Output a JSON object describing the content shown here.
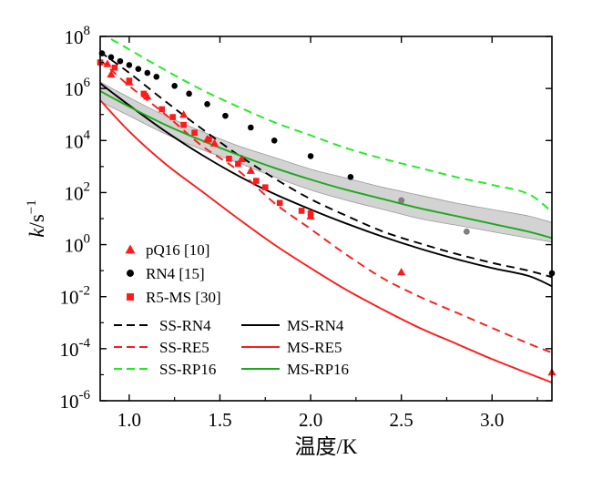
{
  "chart_data": {
    "type": "line",
    "xlabel": "温度/K",
    "ylabel_main": "k",
    "ylabel_unit": "/s",
    "ylabel_sup": "−1",
    "xlim": [
      0.84,
      3.33
    ],
    "ylim": [
      -6,
      8
    ],
    "yscale": "log10",
    "xticks": [
      {
        "v": 1.0,
        "label": "1.0"
      },
      {
        "v": 1.5,
        "label": "1.5"
      },
      {
        "v": 2.0,
        "label": "2.0"
      },
      {
        "v": 2.5,
        "label": "2.5"
      },
      {
        "v": 3.0,
        "label": "3.0"
      }
    ],
    "yticks": [
      {
        "v": 8,
        "base": "10",
        "exp": "8"
      },
      {
        "v": 6,
        "base": "10",
        "exp": "6"
      },
      {
        "v": 4,
        "base": "10",
        "exp": "4"
      },
      {
        "v": 2,
        "base": "10",
        "exp": "2"
      },
      {
        "v": 0,
        "base": "10",
        "exp": "0"
      },
      {
        "v": -2,
        "base": "10",
        "exp": "-2"
      },
      {
        "v": -4,
        "base": "10",
        "exp": "-4"
      },
      {
        "v": -6,
        "base": "10",
        "exp": "-6"
      }
    ],
    "uncertainty_band": {
      "x": [
        0.84,
        1.0,
        1.2,
        1.4,
        1.6,
        1.8,
        2.0,
        2.2,
        2.4,
        2.6,
        2.8,
        3.0,
        3.2,
        3.33
      ],
      "upper": [
        6.25,
        5.65,
        4.95,
        4.35,
        3.8,
        3.35,
        2.9,
        2.55,
        2.2,
        1.9,
        1.6,
        1.35,
        1.1,
        0.85
      ],
      "lower": [
        5.5,
        4.95,
        4.25,
        3.65,
        3.15,
        2.6,
        2.1,
        1.7,
        1.35,
        1.0,
        0.75,
        0.5,
        0.25,
        0.1
      ],
      "color": "#d3d3d3"
    },
    "series": [
      {
        "name": "SS-RN4",
        "style": "dashed",
        "color": "#000000",
        "x": [
          0.84,
          1.0,
          1.2,
          1.4,
          1.6,
          1.8,
          2.0,
          2.2,
          2.4,
          2.6,
          2.8,
          3.0,
          3.2,
          3.33
        ],
        "y": [
          7.4,
          6.6,
          5.5,
          4.45,
          3.45,
          2.55,
          1.75,
          1.1,
          0.5,
          0.05,
          -0.35,
          -0.7,
          -1.0,
          -1.25
        ]
      },
      {
        "name": "MS-RN4",
        "style": "solid",
        "color": "#000000",
        "x": [
          0.84,
          1.0,
          1.2,
          1.4,
          1.6,
          1.8,
          2.0,
          2.2,
          2.4,
          2.6,
          2.8,
          3.0,
          3.2,
          3.33
        ],
        "y": [
          6.2,
          5.35,
          4.35,
          3.45,
          2.65,
          1.95,
          1.35,
          0.8,
          0.3,
          -0.15,
          -0.55,
          -0.9,
          -1.2,
          -1.6
        ]
      },
      {
        "name": "SS-RE5",
        "style": "dashed",
        "color": "#ff1a1a",
        "x": [
          0.84,
          1.0,
          1.2,
          1.4,
          1.6,
          1.8,
          2.0,
          2.2,
          2.4,
          2.6,
          2.8,
          3.0,
          3.2,
          3.33
        ],
        "y": [
          7.1,
          6.1,
          5.0,
          3.8,
          2.85,
          1.6,
          0.6,
          -0.4,
          -1.3,
          -2.0,
          -2.6,
          -3.2,
          -3.8,
          -4.15
        ]
      },
      {
        "name": "MS-RE5",
        "style": "solid",
        "color": "#ff1a1a",
        "x": [
          0.84,
          1.0,
          1.2,
          1.4,
          1.6,
          1.8,
          2.0,
          2.2,
          2.4,
          2.6,
          2.8,
          3.0,
          3.2,
          3.33
        ],
        "y": [
          5.55,
          4.35,
          3.1,
          2.05,
          1.0,
          0.0,
          -0.9,
          -1.75,
          -2.5,
          -3.2,
          -3.8,
          -4.4,
          -4.95,
          -5.3
        ]
      },
      {
        "name": "SS-RP16",
        "style": "dashed",
        "color": "#1aee1a",
        "x": [
          0.9,
          1.0,
          1.2,
          1.4,
          1.6,
          1.8,
          2.0,
          2.2,
          2.4,
          2.6,
          2.8,
          3.0,
          3.2,
          3.33
        ],
        "y": [
          7.9,
          7.5,
          6.7,
          5.95,
          5.3,
          4.7,
          4.2,
          3.7,
          3.3,
          2.95,
          2.6,
          2.3,
          1.95,
          1.25
        ]
      },
      {
        "name": "MS-RP16",
        "style": "solid",
        "color": "#1aaa1a",
        "x": [
          0.84,
          1.0,
          1.2,
          1.4,
          1.6,
          1.8,
          2.0,
          2.2,
          2.4,
          2.6,
          2.8,
          3.0,
          3.2,
          3.33
        ],
        "y": [
          5.9,
          5.3,
          4.6,
          4.0,
          3.45,
          2.95,
          2.5,
          2.1,
          1.75,
          1.4,
          1.1,
          0.8,
          0.5,
          0.25
        ]
      }
    ],
    "scatter": [
      {
        "name": "pQ16 [10]",
        "marker": "triangle",
        "color": "#ff1a1a",
        "x": [
          0.88,
          0.9,
          1.0,
          1.1,
          1.3,
          1.43,
          1.47,
          1.62,
          1.67,
          2.0,
          2.5,
          3.33
        ],
        "y": [
          6.95,
          6.55,
          6.25,
          5.7,
          5.0,
          4.05,
          3.9,
          3.3,
          2.85,
          1.1,
          -1.05,
          -4.9
        ]
      },
      {
        "name": "RN4 [15]",
        "marker": "circle",
        "color": "#000000",
        "x": [
          0.85,
          0.9,
          0.95,
          1.0,
          1.05,
          1.1,
          1.15,
          1.25,
          1.33,
          1.43,
          1.53,
          1.67,
          1.8,
          2.0,
          2.22,
          2.5,
          2.86,
          3.33
        ],
        "y": [
          7.35,
          7.2,
          7.05,
          6.9,
          6.75,
          6.6,
          6.45,
          6.1,
          5.8,
          5.4,
          4.95,
          4.5,
          4.0,
          3.4,
          2.6,
          1.7,
          0.5,
          -1.1
        ]
      },
      {
        "name": "R5-MS [30]",
        "marker": "square",
        "color": "#ff1a1a",
        "x": [
          0.84,
          0.92,
          1.0,
          1.08,
          1.18,
          1.24,
          1.3,
          1.36,
          1.44,
          1.55,
          1.6,
          1.7,
          1.75,
          1.83,
          1.95,
          2.0
        ],
        "y": [
          7.0,
          6.8,
          6.3,
          5.8,
          5.2,
          4.9,
          4.6,
          4.3,
          4.05,
          3.3,
          3.1,
          2.45,
          2.2,
          1.6,
          1.3,
          1.2
        ]
      }
    ],
    "gray_points": {
      "color": "#808080",
      "x": [
        2.5,
        2.86
      ],
      "y": [
        1.7,
        0.5
      ]
    },
    "legend_top": {
      "placement": "left-middle",
      "items": [
        {
          "label": "pQ16 [10]",
          "marker": "triangle",
          "color": "#ff1a1a"
        },
        {
          "label": "RN4 [15]",
          "marker": "circle",
          "color": "#000000"
        },
        {
          "label": "R5-MS [30]",
          "marker": "square",
          "color": "#ff1a1a"
        }
      ]
    },
    "legend_bottom": {
      "placement": "bottom-left",
      "items": [
        {
          "label": "SS-RN4",
          "style": "dashed",
          "color": "#000000"
        },
        {
          "label": "MS-RN4",
          "style": "solid",
          "color": "#000000"
        },
        {
          "label": "SS-RE5",
          "style": "dashed",
          "color": "#ff1a1a"
        },
        {
          "label": "MS-RE5",
          "style": "solid",
          "color": "#ff1a1a"
        },
        {
          "label": "SS-RP16",
          "style": "dashed",
          "color": "#1aee1a"
        },
        {
          "label": "MS-RP16",
          "style": "solid",
          "color": "#1aaa1a"
        }
      ]
    }
  }
}
